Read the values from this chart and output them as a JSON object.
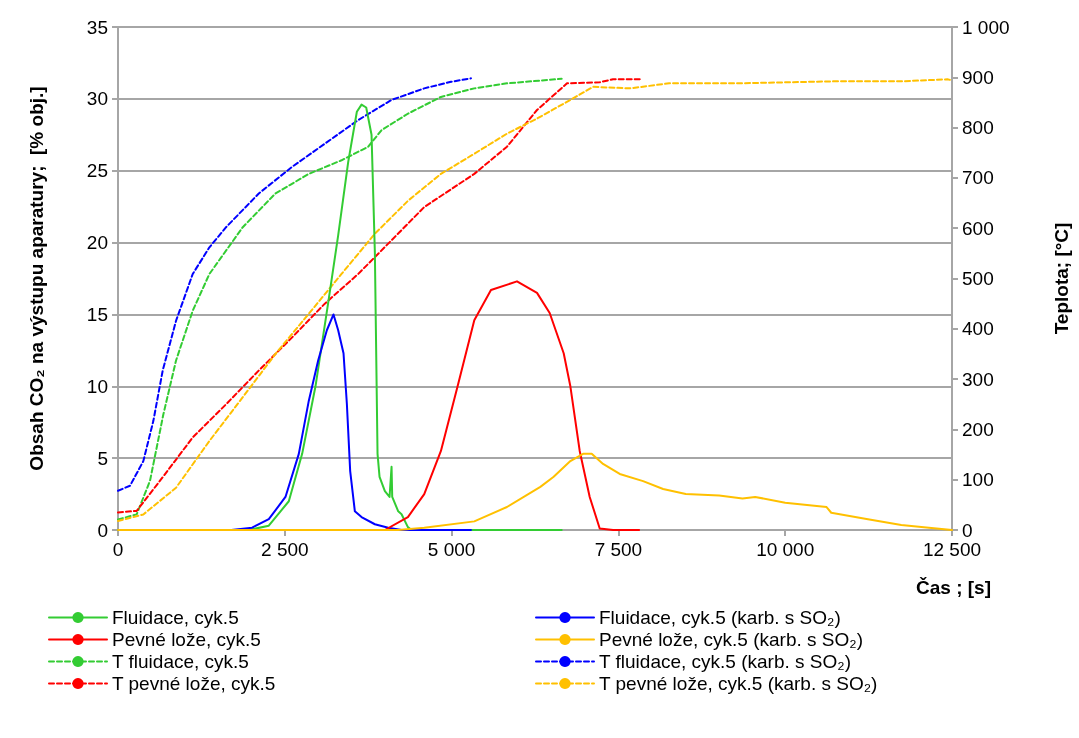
{
  "chart_data": {
    "type": "line",
    "xlabel": "Čas ; [s]",
    "ylabel": "Obsah CO₂ na výstupu aparatury;  [% obj.]",
    "y2label": "Teplota; [°C]",
    "xlim": [
      0,
      12500
    ],
    "xticks": [
      0,
      {
        "value": 2500,
        "label": "2 500"
      },
      {
        "value": 5000,
        "label": "5 000"
      },
      {
        "value": 7500,
        "label": "7 500"
      },
      {
        "value": 10000,
        "label": "10 000"
      },
      {
        "value": 12500,
        "label": "12 500"
      }
    ],
    "ylim": [
      0,
      35
    ],
    "yticks": [
      0,
      5,
      10,
      15,
      20,
      25,
      30,
      35
    ],
    "y2lim": [
      0,
      1000
    ],
    "y2ticks": [
      0,
      100,
      200,
      300,
      400,
      500,
      600,
      700,
      800,
      900,
      {
        "value": 1000,
        "label": "1 000"
      }
    ],
    "grid": "y",
    "legend": "bottom",
    "marker": "none",
    "series": [
      {
        "name": "Fluidace, cyk.5",
        "color": "#33cc33",
        "line_style": "solid",
        "x": [
          0,
          1700,
          1960,
          2260,
          2560,
          2760,
          2960,
          3150,
          3300,
          3450,
          3580,
          3650,
          3720,
          3800,
          3850,
          3890,
          3920,
          4000,
          4070,
          4100,
          4110,
          4200,
          4250,
          4345,
          4400,
          6650
        ],
        "values": [
          0,
          0,
          0,
          0.3,
          2.0,
          5.3,
          10,
          15.8,
          20.5,
          25.6,
          29.1,
          29.6,
          29.4,
          27.5,
          19.3,
          5.3,
          3.7,
          2.7,
          2.3,
          4.4,
          2.3,
          1.3,
          1.1,
          0.2,
          0,
          0
        ]
      },
      {
        "name": "Fluidace, cyk.5 (karb. s SO₂)",
        "color": "#0000ff",
        "line_style": "solid",
        "x": [
          1700,
          2010,
          2260,
          2510,
          2710,
          2860,
          3000,
          3130,
          3230,
          3300,
          3380,
          3430,
          3480,
          3550,
          3650,
          3850,
          4050,
          4250,
          5290
        ],
        "values": [
          0,
          0.16,
          0.75,
          2.3,
          5.3,
          9.0,
          11.8,
          13.9,
          15.0,
          13.9,
          12.3,
          8.8,
          4.1,
          1.3,
          0.9,
          0.4,
          0.16,
          0,
          0
        ]
      },
      {
        "name": "Pevné lože, cyk.5",
        "color": "#ff0000",
        "line_style": "solid",
        "x": [
          4000,
          4345,
          4590,
          4840,
          5090,
          5340,
          5590,
          5980,
          6280,
          6470,
          6680,
          6780,
          6920,
          7070,
          7220,
          7420,
          7810
        ],
        "values": [
          0,
          0.9,
          2.5,
          5.5,
          10,
          14.6,
          16.7,
          17.3,
          16.5,
          15.1,
          12.3,
          10,
          5.5,
          2.3,
          0.1,
          0,
          0
        ]
      },
      {
        "name": "Pevné lože, cyk.5 (karb. s SO₂)",
        "color": "#ffc000",
        "line_style": "solid",
        "x": [
          0,
          4200,
          4590,
          5340,
          5830,
          6330,
          6530,
          6780,
          6970,
          7100,
          7270,
          7520,
          7870,
          8170,
          8510,
          9010,
          9360,
          9550,
          10000,
          10400,
          10620,
          10690,
          11240,
          11740,
          12230,
          12500
        ],
        "values": [
          0,
          0,
          0.16,
          0.6,
          1.6,
          3.0,
          3.7,
          4.8,
          5.3,
          5.3,
          4.6,
          3.9,
          3.4,
          2.85,
          2.5,
          2.4,
          2.2,
          2.3,
          1.9,
          1.7,
          1.6,
          1.2,
          0.75,
          0.35,
          0.12,
          0
        ]
      },
      {
        "name": "T fluidace, cyk.5",
        "color": "#33cc33",
        "line_style": "dashed",
        "axis": "y2",
        "x": [
          0,
          280,
          480,
          680,
          870,
          1120,
          1370,
          1870,
          2360,
          2860,
          3350,
          3750,
          3950,
          4350,
          4840,
          5340,
          5830,
          6650
        ],
        "values": [
          21,
          31,
          98,
          230,
          337,
          436,
          509,
          602,
          669,
          708,
          735,
          762,
          795,
          828,
          861,
          878,
          888,
          897
        ]
      },
      {
        "name": "T fluidace, cyk.5 (karb. s SO₂)",
        "color": "#0000ff",
        "line_style": "dashed",
        "axis": "y2",
        "x": [
          0,
          180,
          380,
          530,
          670,
          870,
          1120,
          1370,
          1620,
          2110,
          2610,
          3100,
          3600,
          4100,
          4590,
          4990,
          5290
        ],
        "values": [
          78,
          88,
          137,
          217,
          317,
          416,
          509,
          562,
          602,
          669,
          722,
          768,
          815,
          855,
          878,
          891,
          898
        ]
      },
      {
        "name": "T pevné lože, cyk.5",
        "color": "#ff0000",
        "line_style": "dashed",
        "axis": "y2",
        "x": [
          0,
          280,
          630,
          1120,
          1620,
          2110,
          2610,
          3100,
          3600,
          4100,
          4590,
          5340,
          5830,
          6280,
          6730,
          7220,
          7420,
          7820
        ],
        "values": [
          35,
          38,
          98,
          184,
          250,
          317,
          383,
          450,
          509,
          576,
          642,
          708,
          762,
          835,
          888,
          890,
          896,
          896
        ]
      },
      {
        "name": "T pevné lože, cyk.5 (karb. s SO₂)",
        "color": "#ffc000",
        "line_style": "dashed",
        "axis": "y2",
        "x": [
          0,
          380,
          870,
          1370,
          1870,
          2360,
          2860,
          3350,
          3850,
          4350,
          4840,
          5340,
          5830,
          6280,
          6780,
          7120,
          7670,
          8260,
          9260,
          10740,
          11740,
          12430,
          12500
        ],
        "values": [
          18,
          31,
          84,
          177,
          264,
          350,
          430,
          509,
          589,
          655,
          708,
          748,
          788,
          818,
          855,
          881,
          878,
          888,
          888,
          892,
          892,
          896,
          894
        ]
      }
    ]
  }
}
